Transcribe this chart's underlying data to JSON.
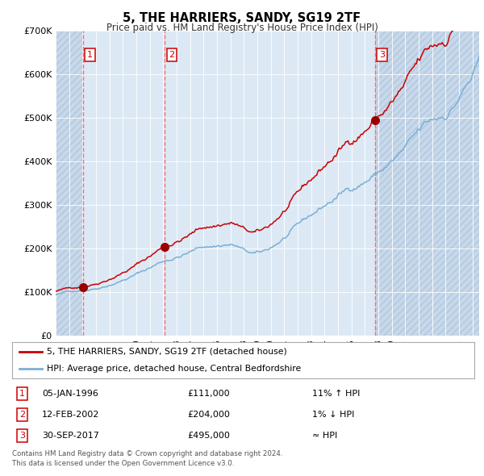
{
  "title": "5, THE HARRIERS, SANDY, SG19 2TF",
  "subtitle": "Price paid vs. HM Land Registry's House Price Index (HPI)",
  "legend_line1": "5, THE HARRIERS, SANDY, SG19 2TF (detached house)",
  "legend_line2": "HPI: Average price, detached house, Central Bedfordshire",
  "footer1": "Contains HM Land Registry data © Crown copyright and database right 2024.",
  "footer2": "This data is licensed under the Open Government Licence v3.0.",
  "sale1_date": "05-JAN-1996",
  "sale1_price": "£111,000",
  "sale1_hpi": "11% ↑ HPI",
  "sale2_date": "12-FEB-2002",
  "sale2_price": "£204,000",
  "sale2_hpi": "1% ↓ HPI",
  "sale3_date": "30-SEP-2017",
  "sale3_price": "£495,000",
  "sale3_hpi": "≈ HPI",
  "sale1_x": 1996.03,
  "sale1_y": 111000,
  "sale2_x": 2002.12,
  "sale2_y": 204000,
  "sale3_x": 2017.75,
  "sale3_y": 495000,
  "ylim": [
    0,
    700000
  ],
  "xlim": [
    1994.0,
    2025.5
  ],
  "background_color": "#ffffff",
  "plot_bg_color": "#dce9f5",
  "hatched_bg_color": "#c8d8ea",
  "grid_color": "#ffffff",
  "red_line_color": "#cc0000",
  "blue_line_color": "#7bafd4",
  "marker_color": "#990000",
  "vline_red_color": "#ff6666",
  "vline_grey_color": "#999999"
}
